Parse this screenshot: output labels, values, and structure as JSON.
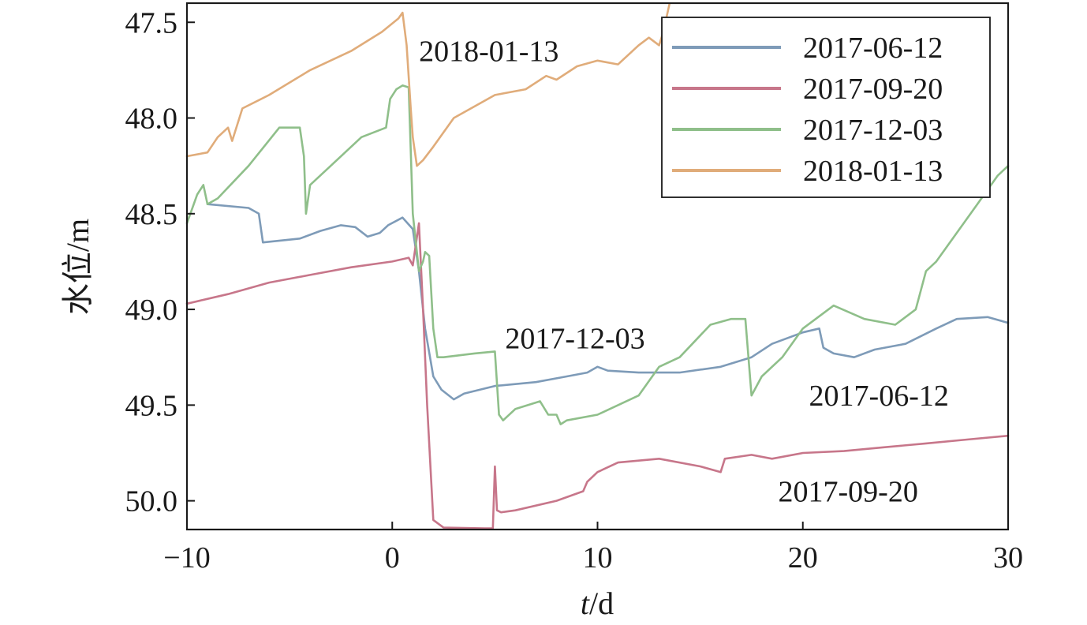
{
  "chart_data": {
    "type": "line",
    "title": "",
    "xlabel_var": "t",
    "xlabel_unit": "/d",
    "ylabel": "水位/m",
    "xlim": [
      -10,
      30
    ],
    "ylim": [
      47.4,
      50.15
    ],
    "y_inverted": true,
    "grid": false,
    "legend_position": "top-right",
    "x_ticks": [
      {
        "value": -10,
        "label": "−10"
      },
      {
        "value": 0,
        "label": "0"
      },
      {
        "value": 10,
        "label": "10"
      },
      {
        "value": 20,
        "label": "20"
      },
      {
        "value": 30,
        "label": "30"
      }
    ],
    "y_ticks": [
      {
        "value": 47.5,
        "label": "47.5"
      },
      {
        "value": 48.0,
        "label": "48.0"
      },
      {
        "value": 48.5,
        "label": "48.5"
      },
      {
        "value": 49.0,
        "label": "49.0"
      },
      {
        "value": 49.5,
        "label": "49.5"
      },
      {
        "value": 50.0,
        "label": "50.0"
      }
    ],
    "series": [
      {
        "name": "2017-06-12",
        "color": "#7e9bb8",
        "x": [
          -9,
          -7,
          -6.5,
          -6.3,
          -4.5,
          -3.5,
          -2.5,
          -1.8,
          -1.2,
          -0.6,
          -0.2,
          0.5,
          1.0,
          1.3,
          1.6,
          2.0,
          2.4,
          3.0,
          3.5,
          5.0,
          7.0,
          8.5,
          9.5,
          10.0,
          10.5,
          12.0,
          14.0,
          16.0,
          17.5,
          18.5,
          20.0,
          20.8,
          21.0,
          21.5,
          22.5,
          23.5,
          25.0,
          26.5,
          27.5,
          29.0,
          30.0
        ],
        "y": [
          48.45,
          48.47,
          48.5,
          48.65,
          48.63,
          48.59,
          48.56,
          48.57,
          48.62,
          48.6,
          48.56,
          48.52,
          48.58,
          48.8,
          49.1,
          49.35,
          49.42,
          49.47,
          49.44,
          49.4,
          49.38,
          49.35,
          49.33,
          49.3,
          49.32,
          49.33,
          49.33,
          49.3,
          49.25,
          49.18,
          49.12,
          49.1,
          49.2,
          49.23,
          49.25,
          49.21,
          49.18,
          49.1,
          49.05,
          49.04,
          49.07
        ]
      },
      {
        "name": "2017-09-20",
        "color": "#c7768a",
        "x": [
          -10,
          -8,
          -6,
          -4,
          -2,
          0,
          0.8,
          1.0,
          1.3,
          1.5,
          1.7,
          2.0,
          2.5,
          4.5,
          4.9,
          5.0,
          5.1,
          5.3,
          6.0,
          8.0,
          9.3,
          9.5,
          10.0,
          11.0,
          13.0,
          15.0,
          16.0,
          16.2,
          17.5,
          18.5,
          20.0,
          22.0,
          24.0,
          26.0,
          28.0,
          30.0
        ],
        "y": [
          48.97,
          48.92,
          48.86,
          48.82,
          48.78,
          48.75,
          48.73,
          48.77,
          48.55,
          49.0,
          49.5,
          50.1,
          50.14,
          50.15,
          50.15,
          49.82,
          50.05,
          50.06,
          50.05,
          50.0,
          49.95,
          49.9,
          49.85,
          49.8,
          49.78,
          49.82,
          49.85,
          49.78,
          49.76,
          49.78,
          49.75,
          49.74,
          49.72,
          49.7,
          49.68,
          49.66
        ]
      },
      {
        "name": "2017-12-03",
        "color": "#8fbf8a",
        "x": [
          -10,
          -9.5,
          -9.2,
          -9,
          -8.5,
          -7,
          -5.5,
          -4.5,
          -4.3,
          -4.2,
          -4.0,
          -3.0,
          -1.5,
          -0.3,
          -0.1,
          0.2,
          0.5,
          0.8,
          1.0,
          1.3,
          1.5,
          1.6,
          1.8,
          2.0,
          2.2,
          2.5,
          4.0,
          5.0,
          5.2,
          5.4,
          6.0,
          7.2,
          7.6,
          8.0,
          8.2,
          8.5,
          10.0,
          12.0,
          13.0,
          14.0,
          15.5,
          16.5,
          17.2,
          17.5,
          18.0,
          19.0,
          20.0,
          21.5,
          23.0,
          24.5,
          25.5,
          26.0,
          26.5,
          27.5,
          28.5,
          29.5,
          30.0
        ],
        "y": [
          48.55,
          48.4,
          48.35,
          48.45,
          48.42,
          48.25,
          48.05,
          48.05,
          48.2,
          48.5,
          48.35,
          48.25,
          48.1,
          48.05,
          47.9,
          47.85,
          47.83,
          47.84,
          48.5,
          48.8,
          48.75,
          48.7,
          48.72,
          49.1,
          49.25,
          49.25,
          49.23,
          49.22,
          49.55,
          49.58,
          49.52,
          49.48,
          49.55,
          49.55,
          49.6,
          49.58,
          49.55,
          49.45,
          49.3,
          49.25,
          49.08,
          49.05,
          49.05,
          49.45,
          49.35,
          49.25,
          49.1,
          48.98,
          49.05,
          49.08,
          49.0,
          48.8,
          48.75,
          48.6,
          48.45,
          48.3,
          48.25
        ]
      },
      {
        "name": "2018-01-13",
        "color": "#e0ac7a",
        "x": [
          -10,
          -9,
          -8.5,
          -8.0,
          -7.8,
          -7.3,
          -6.0,
          -4.0,
          -2.0,
          -0.5,
          0.3,
          0.5,
          0.7,
          0.9,
          1.0,
          1.2,
          1.5,
          2.0,
          3.0,
          5.0,
          6.5,
          7.5,
          8.0,
          9.0,
          10.0,
          11.0,
          12.0,
          12.5,
          13.0,
          13.2,
          13.5
        ],
        "y": [
          48.2,
          48.18,
          48.1,
          48.05,
          48.12,
          47.95,
          47.88,
          47.75,
          47.65,
          47.55,
          47.48,
          47.45,
          47.62,
          47.95,
          48.1,
          48.25,
          48.22,
          48.15,
          48.0,
          47.88,
          47.85,
          47.78,
          47.8,
          47.73,
          47.7,
          47.72,
          47.62,
          47.58,
          47.62,
          47.55,
          47.4
        ]
      }
    ],
    "annotations": [
      {
        "text": "2018-01-13",
        "x": 1.3,
        "y": 47.65
      },
      {
        "text": "2017-12-03",
        "x": 5.5,
        "y": 49.15
      },
      {
        "text": "2017-06-12",
        "x": 20.3,
        "y": 49.45
      },
      {
        "text": "2017-09-20",
        "x": 18.8,
        "y": 49.95
      }
    ]
  }
}
